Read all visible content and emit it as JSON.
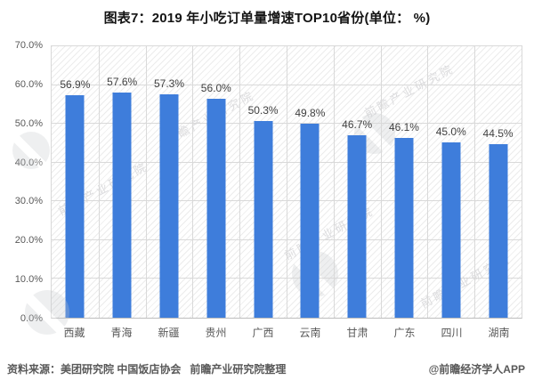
{
  "title": "图表7：2019 年小吃订单量增速TOP10省份(单位： %)",
  "chart_data": {
    "type": "bar",
    "categories": [
      "西藏",
      "青海",
      "新疆",
      "贵州",
      "广西",
      "云南",
      "甘肃",
      "广东",
      "四川",
      "湖南"
    ],
    "values": [
      56.9,
      57.6,
      57.3,
      56.0,
      50.3,
      49.8,
      46.7,
      46.1,
      45.0,
      44.5
    ],
    "value_labels": [
      "56.9%",
      "57.6%",
      "57.3%",
      "56.0%",
      "50.3%",
      "49.8%",
      "46.7%",
      "46.1%",
      "45.0%",
      "44.5%"
    ],
    "title": "图表7：2019 年小吃订单量增速TOP10省份(单位： %)",
    "xlabel": "",
    "ylabel": "",
    "ylim": [
      0,
      70
    ],
    "y_ticks": [
      "0.0%",
      "10.0%",
      "20.0%",
      "30.0%",
      "40.0%",
      "50.0%",
      "60.0%",
      "70.0%"
    ],
    "grid": "both",
    "legend": "none",
    "bar_color": "#3E7DDB"
  },
  "footer": {
    "source": "资料来源：美团研究院 中国饭店协会   前瞻产业研究院整理",
    "credit": "@前瞻经济学人APP"
  },
  "watermark": {
    "text": "前瞻产业研究院"
  }
}
